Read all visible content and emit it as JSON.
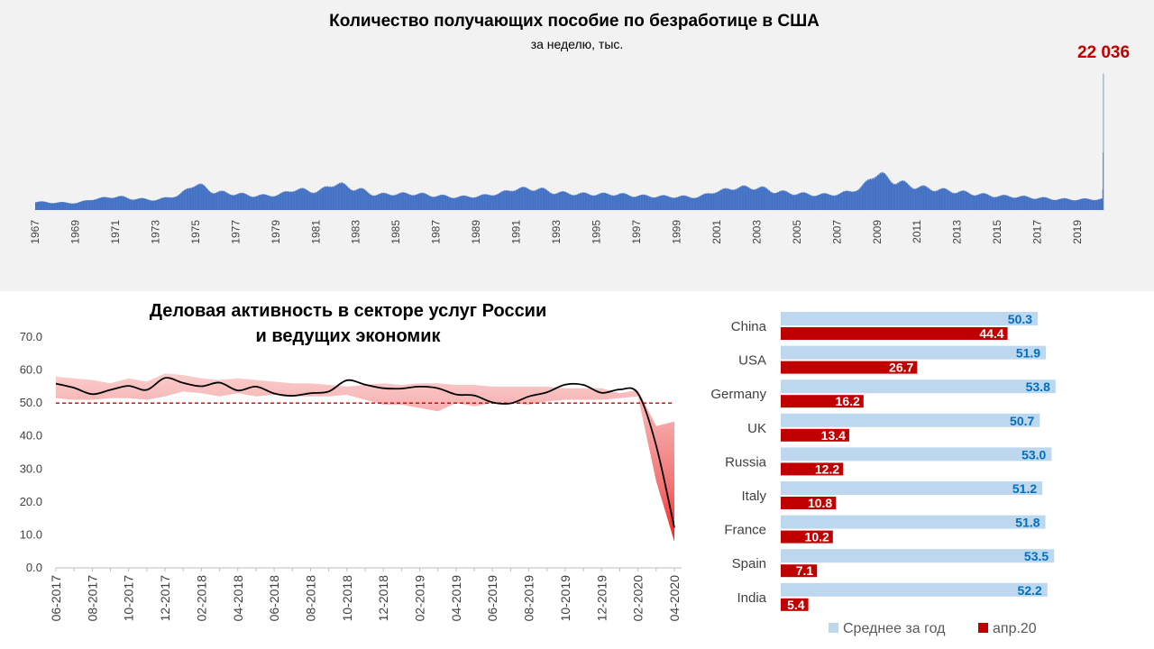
{
  "chart_data": [
    {
      "id": "claims",
      "type": "bar",
      "title": "Количество получающих пособие по безработице  в США",
      "subtitle": "за неделю, тыс.",
      "peak_label": "22 036",
      "peak_value": 22036,
      "x_tick_labels": [
        "1967",
        "1969",
        "1971",
        "1973",
        "1975",
        "1977",
        "1979",
        "1981",
        "1983",
        "1985",
        "1987",
        "1989",
        "1991",
        "1993",
        "1995",
        "1997",
        "1999",
        "2001",
        "2003",
        "2005",
        "2007",
        "2009",
        "2011",
        "2013",
        "2015",
        "2017",
        "2019"
      ],
      "x_start_year": 1967.0,
      "x_end_year": 2020.3,
      "series_color": "#4472c4",
      "peak_label_color": "#c00000",
      "annual_avg_approx": [
        {
          "year": 1967,
          "value": 1300
        },
        {
          "year": 1968,
          "value": 1200
        },
        {
          "year": 1969,
          "value": 1150
        },
        {
          "year": 1970,
          "value": 1800
        },
        {
          "year": 1971,
          "value": 2150
        },
        {
          "year": 1972,
          "value": 1800
        },
        {
          "year": 1973,
          "value": 1650
        },
        {
          "year": 1974,
          "value": 2250
        },
        {
          "year": 1975,
          "value": 4100
        },
        {
          "year": 1976,
          "value": 2900
        },
        {
          "year": 1977,
          "value": 2600
        },
        {
          "year": 1978,
          "value": 2300
        },
        {
          "year": 1979,
          "value": 2400
        },
        {
          "year": 1980,
          "value": 3300
        },
        {
          "year": 1981,
          "value": 3000
        },
        {
          "year": 1982,
          "value": 4200
        },
        {
          "year": 1983,
          "value": 3400
        },
        {
          "year": 1984,
          "value": 2500
        },
        {
          "year": 1985,
          "value": 2600
        },
        {
          "year": 1986,
          "value": 2600
        },
        {
          "year": 1987,
          "value": 2300
        },
        {
          "year": 1988,
          "value": 2100
        },
        {
          "year": 1989,
          "value": 2200
        },
        {
          "year": 1990,
          "value": 2600
        },
        {
          "year": 1991,
          "value": 3400
        },
        {
          "year": 1992,
          "value": 3400
        },
        {
          "year": 1993,
          "value": 2800
        },
        {
          "year": 1994,
          "value": 2600
        },
        {
          "year": 1995,
          "value": 2550
        },
        {
          "year": 1996,
          "value": 2550
        },
        {
          "year": 1997,
          "value": 2300
        },
        {
          "year": 1998,
          "value": 2200
        },
        {
          "year": 1999,
          "value": 2150
        },
        {
          "year": 2000,
          "value": 2100
        },
        {
          "year": 2001,
          "value": 3000
        },
        {
          "year": 2002,
          "value": 3600
        },
        {
          "year": 2003,
          "value": 3600
        },
        {
          "year": 2004,
          "value": 2950
        },
        {
          "year": 2005,
          "value": 2650
        },
        {
          "year": 2006,
          "value": 2450
        },
        {
          "year": 2007,
          "value": 2550
        },
        {
          "year": 2008,
          "value": 3300
        },
        {
          "year": 2009,
          "value": 5800
        },
        {
          "year": 2010,
          "value": 4500
        },
        {
          "year": 2011,
          "value": 3700
        },
        {
          "year": 2012,
          "value": 3300
        },
        {
          "year": 2013,
          "value": 2950
        },
        {
          "year": 2014,
          "value": 2550
        },
        {
          "year": 2015,
          "value": 2250
        },
        {
          "year": 2016,
          "value": 2150
        },
        {
          "year": 2017,
          "value": 1950
        },
        {
          "year": 2018,
          "value": 1750
        },
        {
          "year": 2019,
          "value": 1700
        },
        {
          "year": 2020,
          "value": 1750
        }
      ],
      "ylim": [
        0,
        23000
      ]
    },
    {
      "id": "pmi",
      "type": "line",
      "title_lines": [
        "Деловая активность в секторе услуг России",
        "и ведущих экономик"
      ],
      "x_labels": [
        "06-2017",
        "08-2017",
        "10-2017",
        "12-2017",
        "02-2018",
        "04-2018",
        "06-2018",
        "08-2018",
        "10-2018",
        "12-2018",
        "02-2019",
        "04-2019",
        "06-2019",
        "08-2019",
        "10-2019",
        "12-2019",
        "02-2020",
        "04-2020"
      ],
      "y_tick_labels": [
        "70.0",
        "60.0",
        "50.0",
        "40.0",
        "30.0",
        "20.0",
        "10.0",
        "0.0"
      ],
      "ylim": [
        0,
        70
      ],
      "threshold": 50,
      "russia_line": [
        {
          "x": "06-2017",
          "y": 55.9
        },
        {
          "x": "07-2017",
          "y": 54.6
        },
        {
          "x": "08-2017",
          "y": 52.7
        },
        {
          "x": "09-2017",
          "y": 54.0
        },
        {
          "x": "10-2017",
          "y": 55.2
        },
        {
          "x": "11-2017",
          "y": 54.0
        },
        {
          "x": "12-2017",
          "y": 57.6
        },
        {
          "x": "01-2018",
          "y": 56.1
        },
        {
          "x": "02-2018",
          "y": 55.1
        },
        {
          "x": "03-2018",
          "y": 56.2
        },
        {
          "x": "04-2018",
          "y": 53.8
        },
        {
          "x": "05-2018",
          "y": 55.0
        },
        {
          "x": "06-2018",
          "y": 52.9
        },
        {
          "x": "07-2018",
          "y": 52.2
        },
        {
          "x": "08-2018",
          "y": 53.0
        },
        {
          "x": "09-2018",
          "y": 53.5
        },
        {
          "x": "10-2018",
          "y": 56.9
        },
        {
          "x": "11-2018",
          "y": 55.6
        },
        {
          "x": "12-2018",
          "y": 54.5
        },
        {
          "x": "01-2019",
          "y": 54.4
        },
        {
          "x": "02-2019",
          "y": 55.0
        },
        {
          "x": "03-2019",
          "y": 54.5
        },
        {
          "x": "04-2019",
          "y": 52.6
        },
        {
          "x": "05-2019",
          "y": 52.3
        },
        {
          "x": "06-2019",
          "y": 50.2
        },
        {
          "x": "07-2019",
          "y": 49.9
        },
        {
          "x": "08-2019",
          "y": 52.0
        },
        {
          "x": "09-2019",
          "y": 53.3
        },
        {
          "x": "10-2019",
          "y": 55.6
        },
        {
          "x": "11-2019",
          "y": 55.5
        },
        {
          "x": "12-2019",
          "y": 53.1
        },
        {
          "x": "01-2020",
          "y": 54.1
        },
        {
          "x": "02-2020",
          "y": 52.9
        },
        {
          "x": "03-2020",
          "y": 37.1
        },
        {
          "x": "04-2020",
          "y": 12.2
        }
      ],
      "band_upper": [
        58.0,
        57.5,
        57.0,
        56.0,
        57.5,
        56.5,
        59.0,
        58.5,
        57.5,
        57.0,
        57.5,
        57.0,
        56.5,
        56.0,
        56.0,
        55.5,
        55.0,
        55.5,
        56.0,
        55.5,
        56.0,
        56.0,
        55.5,
        55.5,
        55.0,
        55.0,
        55.0,
        55.0,
        54.5,
        54.5,
        54.5,
        53.0,
        54.0,
        43.0,
        44.4
      ],
      "band_lower": [
        51.5,
        51.0,
        51.0,
        51.5,
        51.5,
        51.0,
        52.0,
        53.5,
        53.0,
        52.0,
        53.0,
        52.0,
        52.5,
        52.0,
        52.0,
        52.0,
        52.5,
        51.0,
        49.5,
        49.5,
        48.5,
        47.5,
        50.0,
        49.0,
        50.0,
        50.0,
        49.5,
        50.5,
        51.0,
        51.0,
        51.0,
        51.5,
        52.0,
        26.3,
        8.0
      ],
      "band_color": "#f4a0a0",
      "line_color": "#000000",
      "threshold_color": "#c00000"
    },
    {
      "id": "countries",
      "type": "bar",
      "orientation": "horizontal",
      "categories": [
        "China",
        "USA",
        "Germany",
        "UK",
        "Russia",
        "Italy",
        "France",
        "Spain",
        "India"
      ],
      "series": [
        {
          "name": "Среднее за год",
          "values": [
            50.3,
            51.9,
            53.8,
            50.7,
            53.0,
            51.2,
            51.8,
            53.5,
            52.2
          ],
          "color": "#bdd7ee",
          "label_color": "#0070c0"
        },
        {
          "name": "апр.20",
          "values": [
            44.4,
            26.7,
            16.2,
            13.4,
            12.2,
            10.8,
            10.2,
            7.1,
            5.4
          ],
          "color": "#c00000",
          "label_color": "#ffffff"
        }
      ],
      "xlim": [
        0,
        60
      ],
      "legend_position": "bottom"
    }
  ]
}
